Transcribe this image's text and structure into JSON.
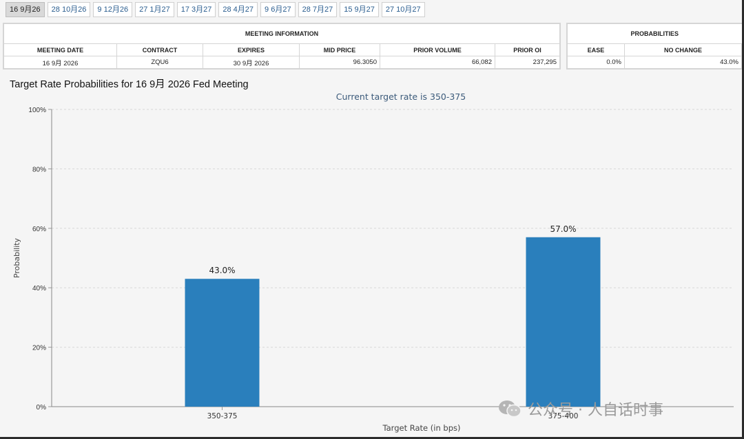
{
  "tabs": [
    "16 9月26",
    "28 10月26",
    "9 12月26",
    "27 1月27",
    "17 3月27",
    "28 4月27",
    "9 6月27",
    "28 7月27",
    "15 9月27",
    "27 10月27"
  ],
  "meeting_info": {
    "header": "MEETING INFORMATION",
    "columns": [
      "MEETING DATE",
      "CONTRACT",
      "EXPIRES",
      "MID PRICE",
      "PRIOR VOLUME",
      "PRIOR OI"
    ],
    "row": [
      "16 9月 2026",
      "ZQU6",
      "30 9月 2026",
      "96.3050",
      "66,082",
      "237,295"
    ]
  },
  "probabilities": {
    "header": "PROBABILITIES",
    "columns": [
      "EASE",
      "NO CHANGE"
    ],
    "row": [
      "0.0%",
      "43.0%"
    ]
  },
  "chart_title": "Target Rate Probabilities for 16 9月 2026 Fed Meeting",
  "chart_data": {
    "type": "bar",
    "subtitle": "Current target rate is 350-375",
    "categories": [
      "350-375",
      "375-400"
    ],
    "values": [
      43.0,
      57.0
    ],
    "data_labels": [
      "43.0%",
      "57.0%"
    ],
    "ylabel": "Probability",
    "xlabel": "Target Rate (in bps)",
    "ylim": [
      0,
      100
    ],
    "yticks": [
      0,
      20,
      40,
      60,
      80,
      100
    ],
    "ytick_labels": [
      "0%",
      "20%",
      "40%",
      "60%",
      "80%",
      "100%"
    ],
    "grid": true,
    "bar_color": "#2a7fbc"
  },
  "watermark": "公众号 · 人自话时事"
}
